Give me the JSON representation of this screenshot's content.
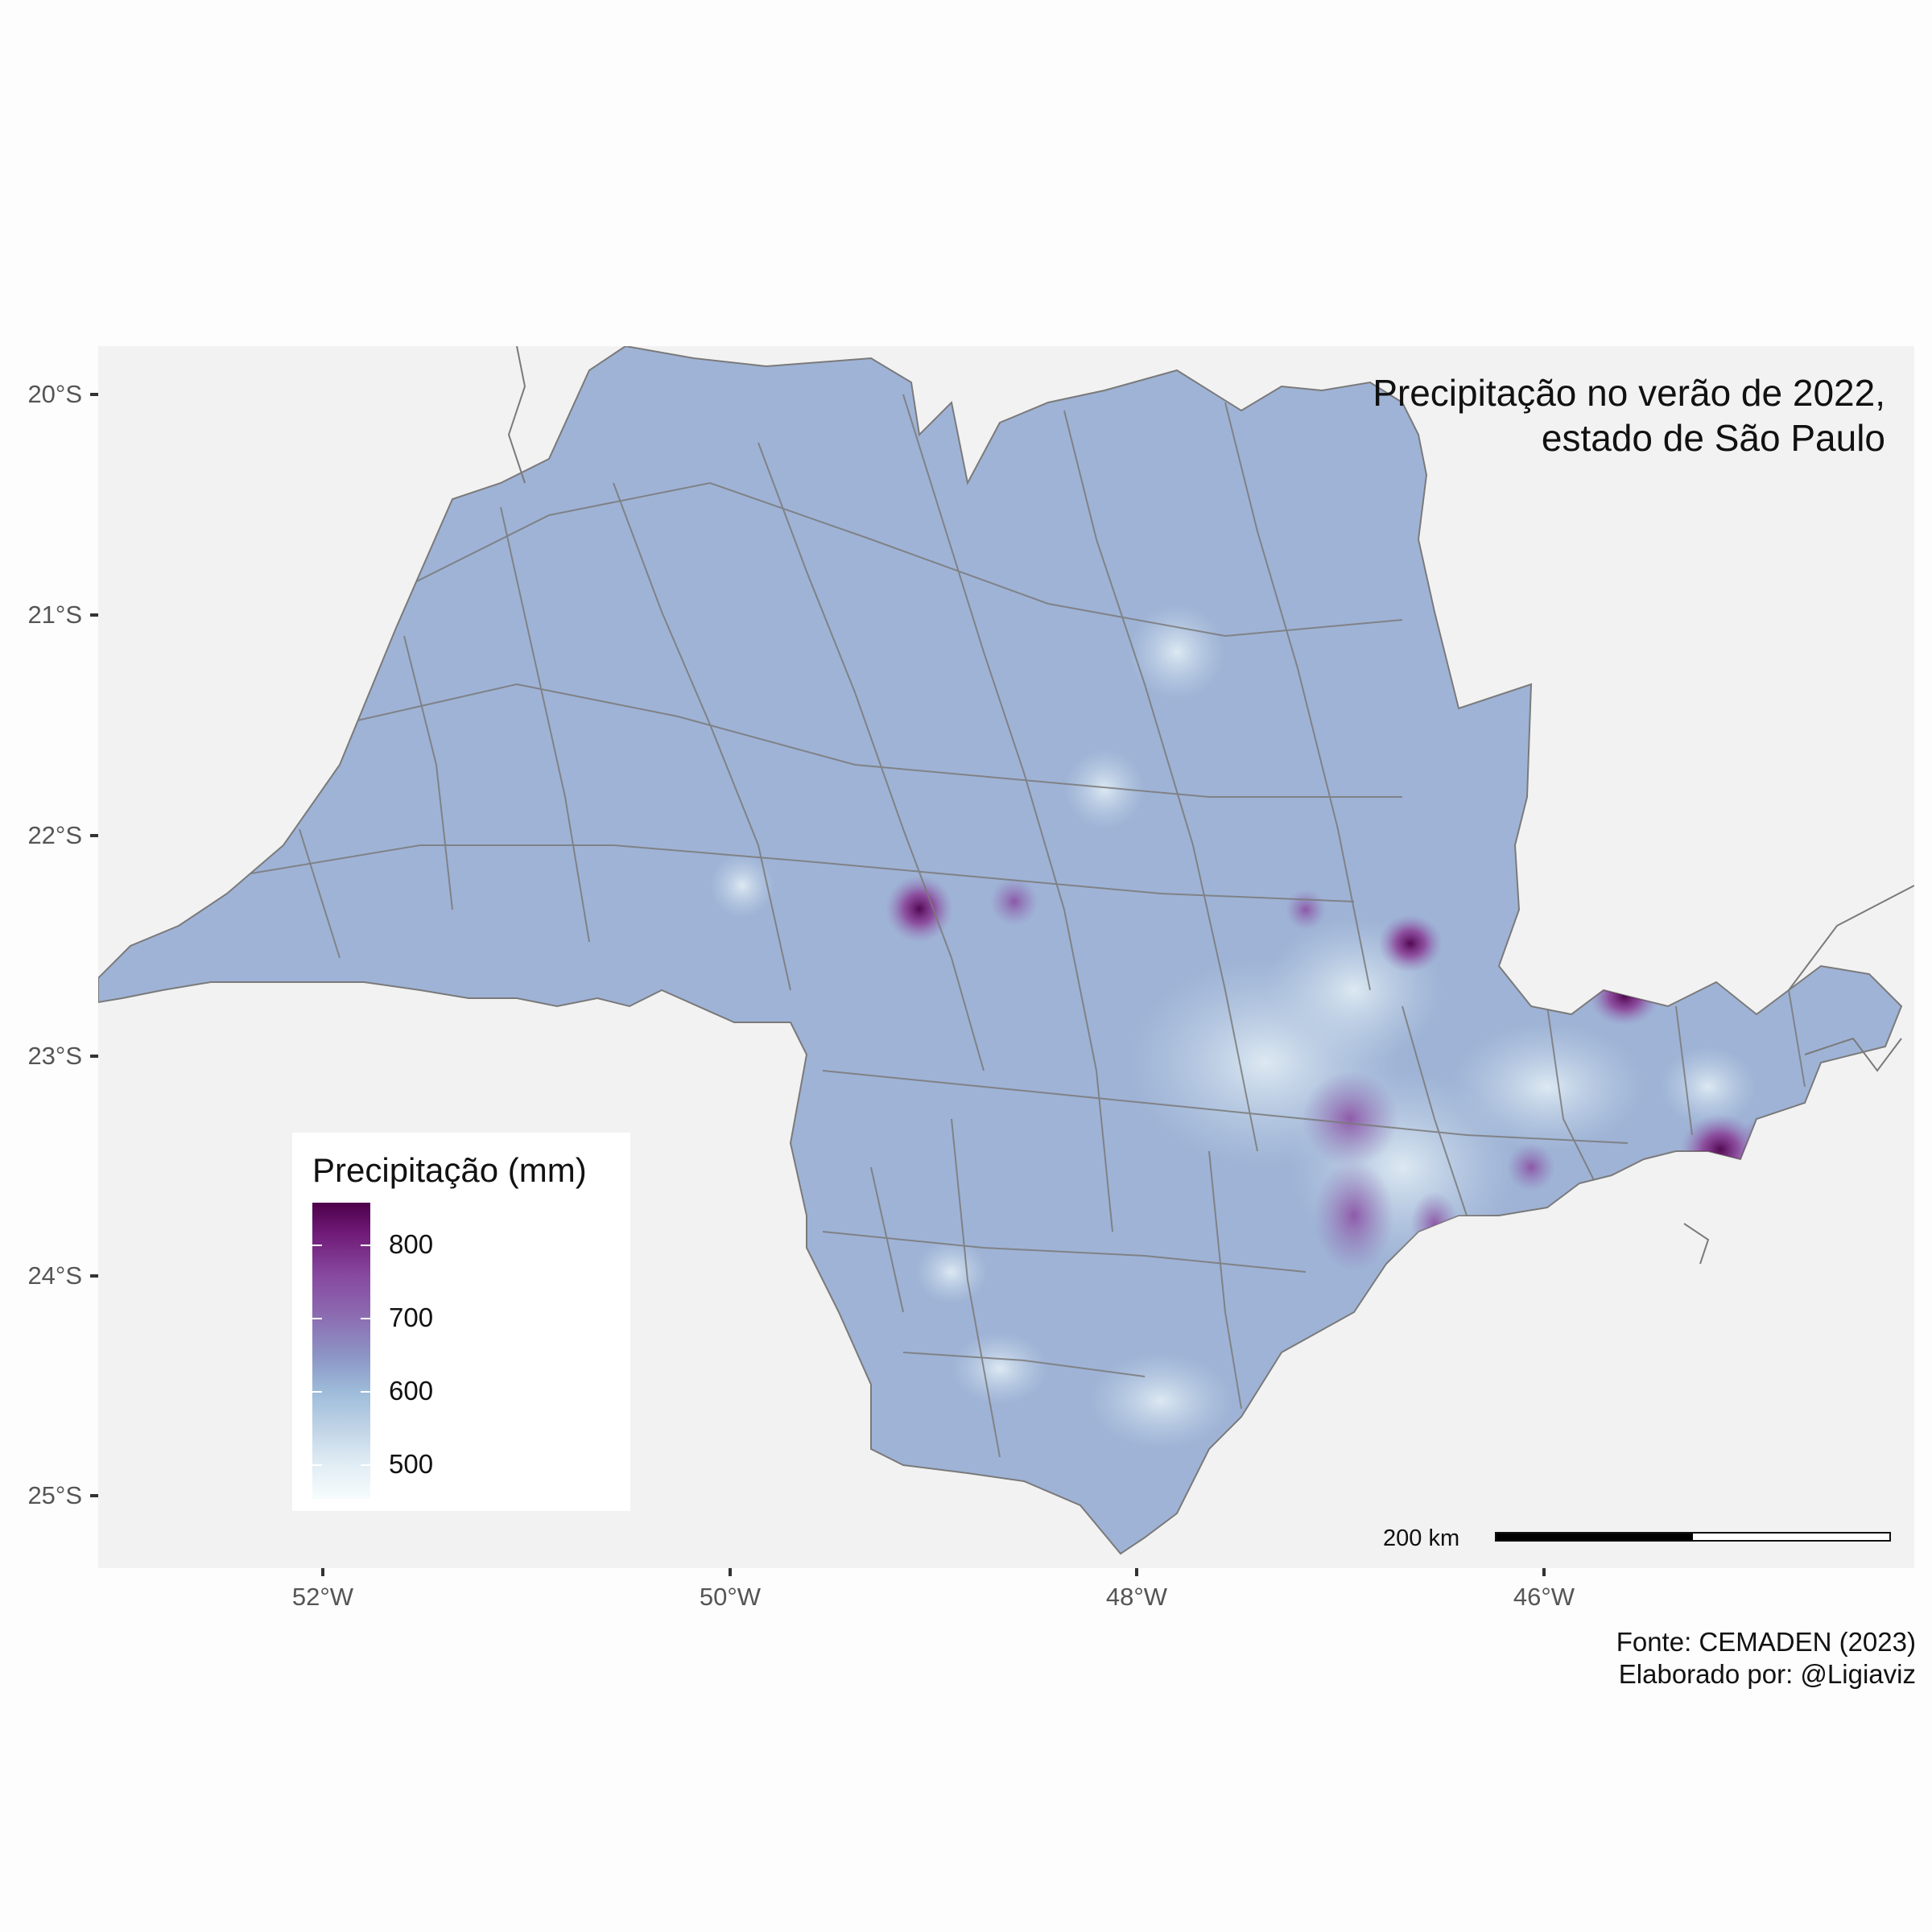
{
  "map": {
    "title_line1": "Precipitação no verão de 2022,",
    "title_line2": "estado de São Paulo",
    "y_axis_labels": [
      "20°S",
      "21°S",
      "22°S",
      "23°S",
      "24°S",
      "25°S"
    ],
    "x_axis_labels": [
      "52°W",
      "50°W",
      "48°W",
      "46°W"
    ],
    "legend": {
      "title": "Precipitação (mm)",
      "labels": [
        "800",
        "700",
        "600",
        "500"
      ]
    },
    "scale_bar": {
      "label": "200 km"
    },
    "caption_line1": "Fonte: CEMADEN (2023)",
    "caption_line2": "Elaborado por: @Ligiaviz",
    "colors": {
      "state_fill": "#9fb3d6",
      "border": "#7a7a7a",
      "panel": "#f2f2f2",
      "high": "#4d004b",
      "mid": "#8c6bb1",
      "low": "#f7fcfd"
    }
  }
}
